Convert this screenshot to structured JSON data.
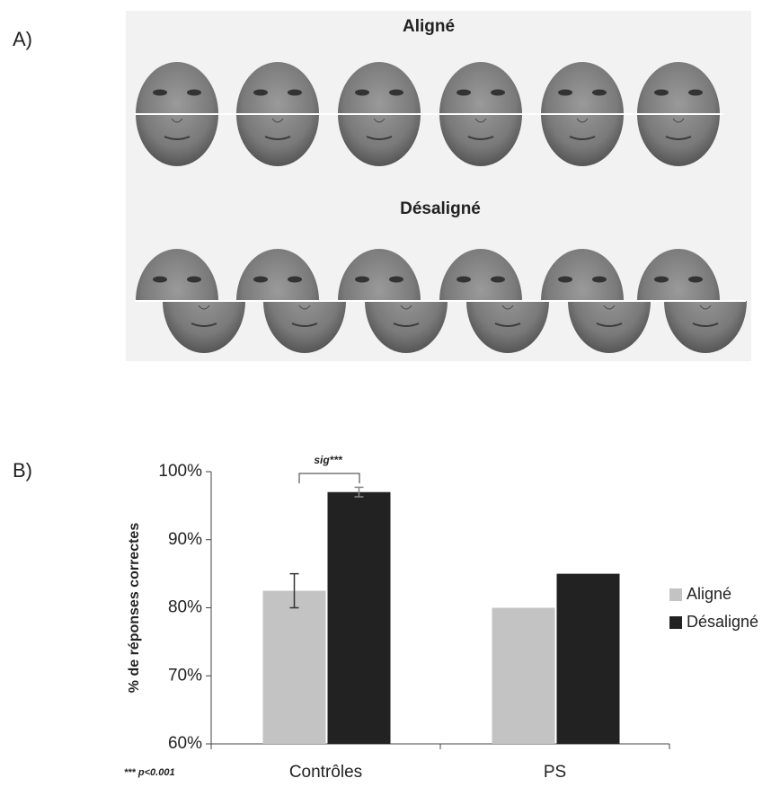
{
  "panel_a": {
    "label": "A)",
    "aligned_title": "Aligné",
    "misaligned_title": "Désaligné"
  },
  "panel_b": {
    "label": "B)"
  },
  "chart_data": {
    "type": "bar",
    "y_label": "% de réponses correctes",
    "annotation": "sig***",
    "footnote": "*** p<0.001",
    "categories": [
      "Contrôles",
      "PS"
    ],
    "series": [
      {
        "name": "Aligné",
        "color": "#c3c3c3",
        "values": [
          82.5,
          80
        ],
        "errors": [
          2.5,
          null
        ]
      },
      {
        "name": "Désaligné",
        "color": "#222222",
        "values": [
          97,
          85
        ],
        "errors": [
          0.7,
          null
        ]
      }
    ],
    "ylim": [
      60,
      100
    ],
    "yticks": [
      {
        "value": 60,
        "label": "60%"
      },
      {
        "value": 70,
        "label": "70%"
      },
      {
        "value": 80,
        "label": "80%"
      },
      {
        "value": 90,
        "label": "90%"
      },
      {
        "value": 100,
        "label": "100%"
      }
    ],
    "legend": "right"
  }
}
